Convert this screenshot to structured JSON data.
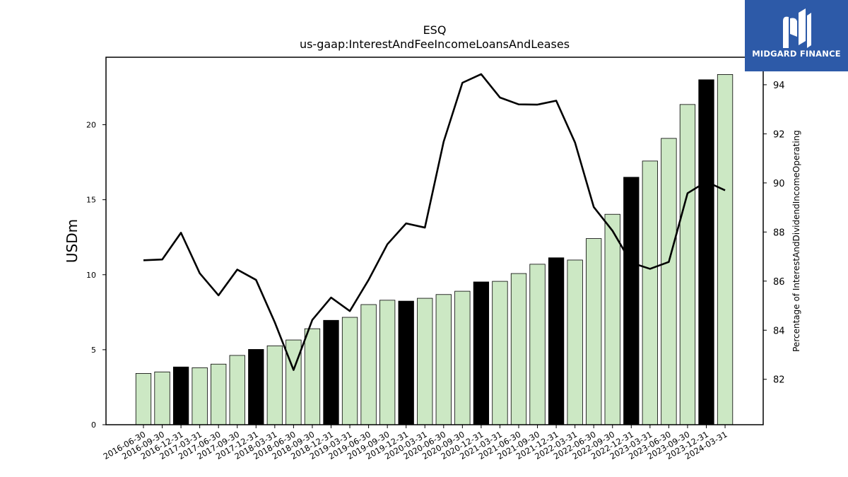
{
  "chart_data": {
    "type": "bar",
    "title": "ESQ",
    "subtitle": "us-gaap:InterestAndFeeIncomeLoansAndLeases",
    "ylabel": "USDm",
    "y2label": "Percentage of InterestAndDividendIncomeOperating",
    "categories": [
      "2016-06-30",
      "2016-09-30",
      "2016-12-31",
      "2017-03-31",
      "2017-06-30",
      "2017-09-30",
      "2017-12-31",
      "2018-03-31",
      "2018-06-30",
      "2018-09-30",
      "2018-12-31",
      "2019-03-31",
      "2019-06-30",
      "2019-09-30",
      "2019-12-31",
      "2020-03-31",
      "2020-06-30",
      "2020-09-30",
      "2020-12-31",
      "2021-03-31",
      "2021-06-30",
      "2021-09-30",
      "2021-12-31",
      "2022-03-31",
      "2022-06-30",
      "2022-09-30",
      "2022-12-31",
      "2023-03-31",
      "2023-06-30",
      "2023-09-30",
      "2023-12-31",
      "2024-03-31"
    ],
    "series": [
      {
        "values": [
          3.42,
          3.52,
          3.85,
          3.8,
          4.04,
          4.62,
          5.02,
          5.26,
          5.65,
          6.4,
          6.96,
          7.16,
          8.01,
          8.3,
          8.24,
          8.43,
          8.68,
          8.9,
          9.52,
          9.56,
          10.08,
          10.7,
          11.13,
          10.98,
          12.41,
          14.03,
          16.5,
          17.58,
          19.09,
          21.35,
          23.0,
          23.35
        ],
        "highlight": [
          false,
          false,
          true,
          false,
          false,
          false,
          true,
          false,
          false,
          false,
          true,
          false,
          false,
          false,
          true,
          false,
          false,
          false,
          true,
          false,
          false,
          false,
          true,
          false,
          false,
          false,
          true,
          false,
          false,
          false,
          true,
          false
        ]
      },
      {
        "axis": "right",
        "values": [
          86.85,
          86.88,
          87.97,
          86.32,
          85.42,
          86.47,
          86.05,
          84.32,
          82.38,
          84.42,
          85.33,
          84.78,
          86.05,
          87.5,
          88.35,
          88.18,
          91.68,
          94.08,
          94.43,
          93.48,
          93.2,
          93.19,
          93.35,
          91.65,
          89.02,
          88.05,
          86.75,
          86.5,
          86.78,
          89.58,
          90.05,
          89.7
        ]
      }
    ],
    "ylim": [
      0,
      24.5
    ],
    "y2lim": [
      80.15,
      95.12
    ],
    "yticks": [
      0,
      5,
      10,
      15,
      20
    ],
    "y2ticks": [
      82,
      84,
      86,
      88,
      90,
      92,
      94
    ],
    "colors": {
      "bar": "#cce8c4",
      "bar_highlight": "#000000",
      "line": "#000000",
      "edge": "#000000"
    }
  },
  "logo": {
    "text": "MIDGARD FINANCE",
    "background": "#2d5aa8"
  }
}
